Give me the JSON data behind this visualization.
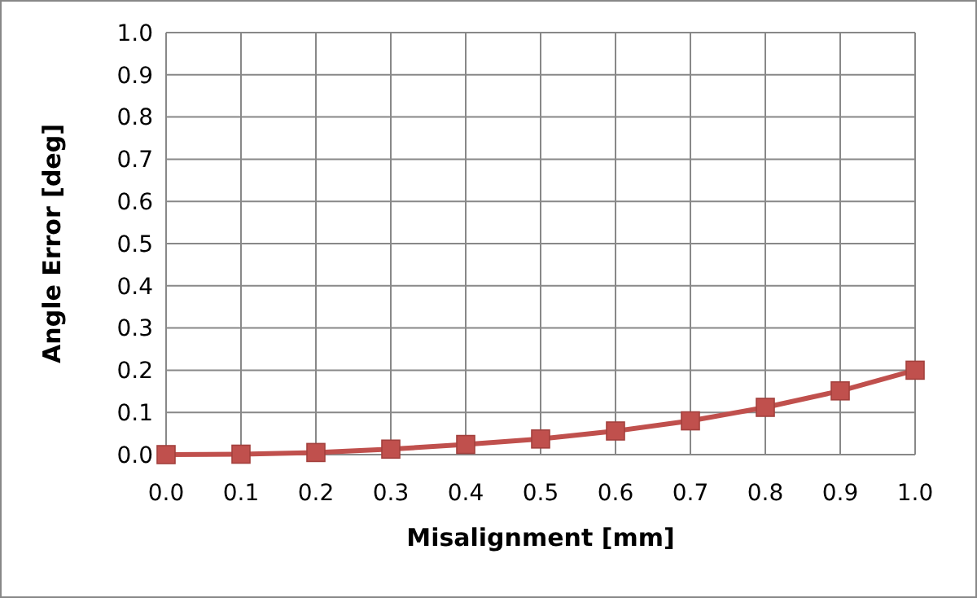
{
  "chart_data": {
    "type": "line",
    "xlabel": "Misalignment [mm]",
    "ylabel": "Angle Error [deg]",
    "x": [
      0,
      0.1,
      0.2,
      0.3,
      0.4,
      0.5,
      0.6,
      0.7,
      0.8,
      0.9,
      1.0
    ],
    "series": [
      {
        "color": "#c0504d",
        "values": [
          0,
          0.001,
          0.005,
          0.013,
          0.024,
          0.037,
          0.056,
          0.08,
          0.112,
          0.151,
          0.2
        ]
      }
    ],
    "xlim": [
      0,
      1
    ],
    "xticks": [
      {
        "value": 0,
        "label": "0.0"
      },
      {
        "value": 0.1,
        "label": "0.1"
      },
      {
        "value": 0.2,
        "label": "0.2"
      },
      {
        "value": 0.3,
        "label": "0.3"
      },
      {
        "value": 0.4,
        "label": "0.4"
      },
      {
        "value": 0.5,
        "label": "0.5"
      },
      {
        "value": 0.6,
        "label": "0.6"
      },
      {
        "value": 0.7,
        "label": "0.7"
      },
      {
        "value": 0.8,
        "label": "0.8"
      },
      {
        "value": 0.9,
        "label": "0.9"
      },
      {
        "value": 1,
        "label": "1.0"
      }
    ],
    "ylim": [
      0,
      1
    ],
    "yticks": [
      {
        "value": 0,
        "label": "0.0"
      },
      {
        "value": 0.1,
        "label": "0.1"
      },
      {
        "value": 0.2,
        "label": "0.2"
      },
      {
        "value": 0.3,
        "label": "0.3"
      },
      {
        "value": 0.4,
        "label": "0.4"
      },
      {
        "value": 0.5,
        "label": "0.5"
      },
      {
        "value": 0.6,
        "label": "0.6"
      },
      {
        "value": 0.7,
        "label": "0.7"
      },
      {
        "value": 0.8,
        "label": "0.8"
      },
      {
        "value": 0.9,
        "label": "0.9"
      },
      {
        "value": 1,
        "label": "1.0"
      }
    ],
    "grid": true,
    "marker": "square",
    "line_style": "solid"
  }
}
